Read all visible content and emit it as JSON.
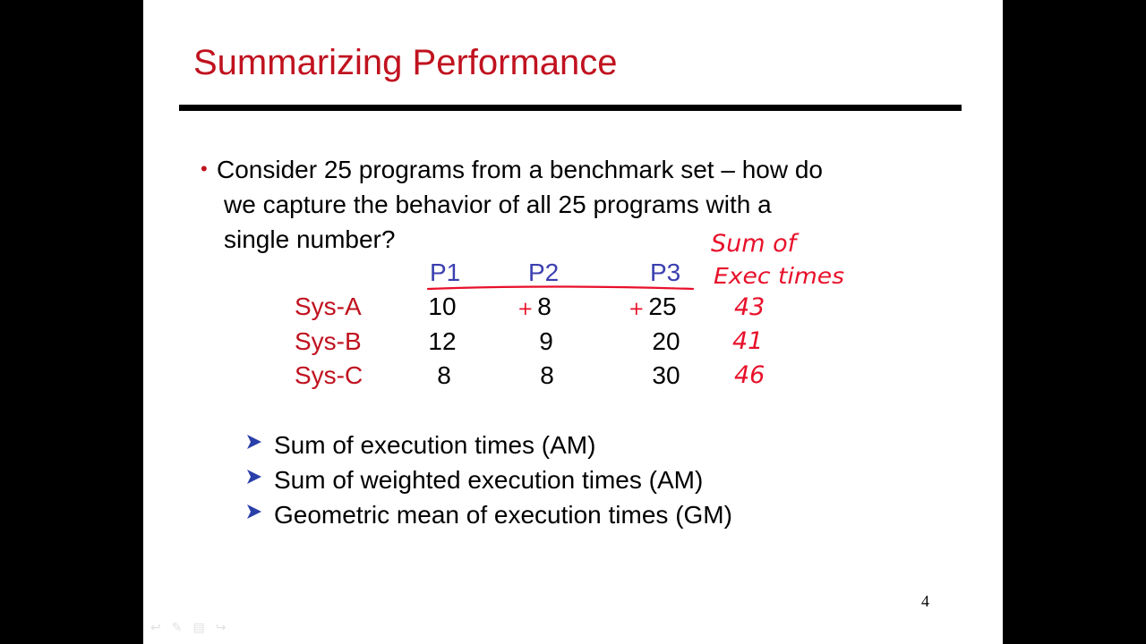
{
  "slide": {
    "title": "Summarizing Performance",
    "bullet": {
      "lines": [
        "Consider 25 programs from a benchmark set – how do",
        "we capture the behavior of all 25 programs with a",
        "single number?"
      ]
    },
    "table": {
      "columns": [
        "P1",
        "P2",
        "P3"
      ],
      "rows": [
        {
          "label": "Sys-A",
          "values": [
            "10",
            "8",
            "25"
          ]
        },
        {
          "label": "Sys-B",
          "values": [
            "12",
            "9",
            "20"
          ]
        },
        {
          "label": "Sys-C",
          "values": [
            "8",
            "8",
            "30"
          ]
        }
      ]
    },
    "annotations": {
      "header_line1": "Sum of",
      "header_line2": "Exec times",
      "plus_signs": [
        "+",
        "+"
      ],
      "sums": [
        "43",
        "41",
        "46"
      ]
    },
    "sub_bullets": [
      "Sum of execution times (AM)",
      "Sum of weighted execution times (AM)",
      "Geometric mean of execution times (GM)"
    ],
    "page_number": "4",
    "colors": {
      "title": "#c0121f",
      "column_headers": "#3b3fb0",
      "row_headers": "#c0121f",
      "ink": "#e8102a",
      "arrows": "#2a3fa8"
    }
  }
}
